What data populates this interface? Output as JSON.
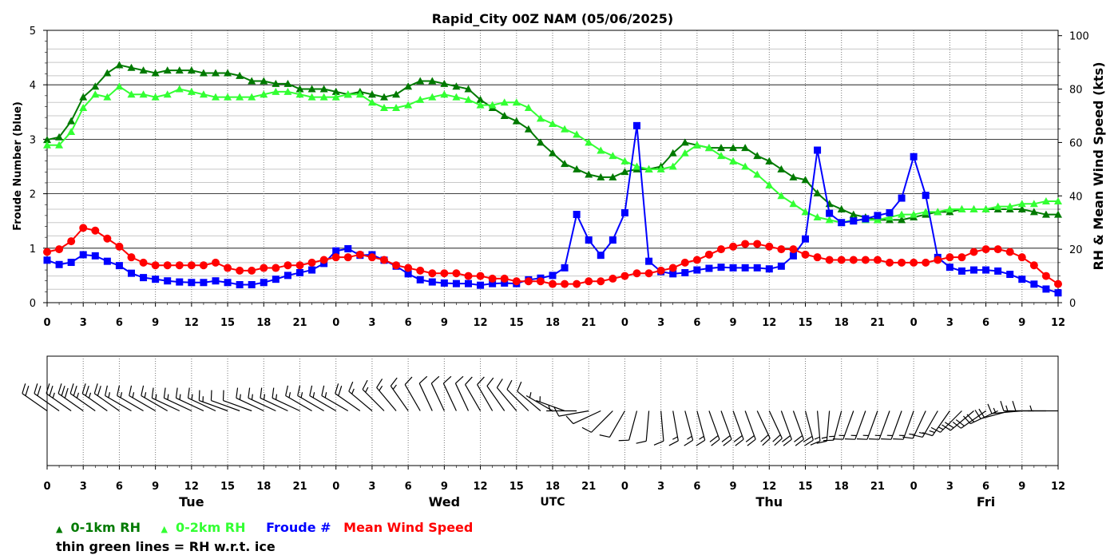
{
  "chart_data": [
    {
      "type": "line",
      "title": "Rapid_City 00Z NAM (05/06/2025)",
      "ylabel": "Froude Number (blue)",
      "y2label": "RH & Mean Wind Speed (kts)",
      "ylim": [
        0,
        5
      ],
      "y2lim": [
        0,
        102
      ],
      "yticks": [
        0,
        1,
        2,
        3,
        4,
        5
      ],
      "y2ticks": [
        0,
        20,
        40,
        60,
        80,
        100
      ],
      "x": [
        0,
        1,
        2,
        3,
        4,
        5,
        6,
        7,
        8,
        9,
        10,
        11,
        12,
        13,
        14,
        15,
        16,
        17,
        18,
        19,
        20,
        21,
        22,
        23,
        24,
        25,
        26,
        27,
        28,
        29,
        30,
        31,
        32,
        33,
        34,
        35,
        36,
        37,
        38,
        39,
        40,
        41,
        42,
        43,
        44,
        45,
        46,
        47,
        48,
        49,
        50,
        51,
        52,
        53,
        54,
        55,
        56,
        57,
        58,
        59,
        60,
        61,
        62,
        63,
        64,
        65,
        66,
        67,
        68,
        69,
        70,
        71,
        72,
        73,
        74,
        75,
        76,
        77,
        78,
        79,
        80,
        81,
        82,
        83,
        84
      ],
      "xticks": [
        0,
        3,
        6,
        9,
        12,
        15,
        18,
        21,
        24,
        27,
        30,
        33,
        36,
        39,
        42,
        45,
        48,
        51,
        54,
        57,
        60,
        63,
        66,
        69,
        72,
        75,
        78,
        81,
        84
      ],
      "xticklabels": [
        "0",
        "3",
        "6",
        "9",
        "12",
        "15",
        "18",
        "21",
        "0",
        "3",
        "6",
        "9",
        "12",
        "15",
        "18",
        "21",
        "0",
        "3",
        "6",
        "9",
        "12",
        "15",
        "18",
        "21",
        "0",
        "3",
        "6",
        "9",
        "12"
      ],
      "grid": true,
      "series": [
        {
          "name": "0-1km RH",
          "axis": "right",
          "color": "#007a00",
          "marker": "triangle",
          "values": [
            61,
            62,
            68,
            77,
            81,
            86,
            89,
            88,
            87,
            86,
            87,
            87,
            87,
            86,
            86,
            86,
            85,
            83,
            83,
            82,
            82,
            80,
            80,
            80,
            79,
            78,
            79,
            78,
            77,
            78,
            81,
            83,
            83,
            82,
            81,
            80,
            76,
            73,
            70,
            68,
            65,
            60,
            56,
            52,
            50,
            48,
            47,
            47,
            49,
            50,
            50,
            51,
            56,
            60,
            59,
            58,
            58,
            58,
            58,
            55,
            53,
            50,
            47,
            46,
            41,
            37,
            35,
            33,
            32,
            31,
            31,
            31,
            32,
            33,
            34,
            34,
            35,
            35,
            35,
            35,
            35,
            35,
            34,
            33,
            33
          ]
        },
        {
          "name": "0-2km RH",
          "axis": "right",
          "color": "#33ff33",
          "marker": "triangle",
          "values": [
            59,
            59,
            64,
            73,
            78,
            77,
            81,
            78,
            78,
            77,
            78,
            80,
            79,
            78,
            77,
            77,
            77,
            77,
            78,
            79,
            79,
            78,
            77,
            77,
            77,
            78,
            78,
            75,
            73,
            73,
            74,
            76,
            77,
            78,
            77,
            76,
            74,
            74,
            75,
            75,
            73,
            69,
            67,
            65,
            63,
            60,
            57,
            55,
            53,
            51,
            50,
            50,
            51,
            56,
            59,
            58,
            55,
            53,
            51,
            48,
            44,
            40,
            37,
            34,
            32,
            31,
            30,
            31,
            31,
            31,
            32,
            33,
            33,
            34,
            34,
            35,
            35,
            35,
            35,
            36,
            36,
            37,
            37,
            38,
            38
          ]
        },
        {
          "name": "Froude #",
          "axis": "left",
          "color": "#0000ff",
          "marker": "square",
          "values": [
            0.78,
            0.7,
            0.74,
            0.88,
            0.86,
            0.76,
            0.68,
            0.54,
            0.46,
            0.43,
            0.4,
            0.38,
            0.37,
            0.37,
            0.4,
            0.37,
            0.33,
            0.33,
            0.37,
            0.43,
            0.5,
            0.55,
            0.6,
            0.72,
            0.95,
            0.99,
            0.87,
            0.88,
            0.78,
            0.67,
            0.53,
            0.42,
            0.38,
            0.36,
            0.35,
            0.35,
            0.32,
            0.35,
            0.36,
            0.35,
            0.42,
            0.45,
            0.5,
            0.64,
            1.62,
            1.15,
            0.87,
            1.15,
            1.65,
            3.25,
            0.76,
            0.57,
            0.53,
            0.55,
            0.6,
            0.63,
            0.65,
            0.64,
            0.64,
            0.64,
            0.62,
            0.67,
            0.86,
            1.17,
            2.8,
            1.64,
            1.47,
            1.5,
            1.54,
            1.6,
            1.65,
            1.92,
            2.68,
            1.97,
            0.83,
            0.65,
            0.58,
            0.6,
            0.6,
            0.58,
            0.52,
            0.43,
            0.34,
            0.25,
            0.18
          ]
        },
        {
          "name": "Mean Wind Speed",
          "axis": "right",
          "color": "#ff0000",
          "marker": "circle",
          "values": [
            19,
            20,
            23,
            28,
            27,
            24,
            21,
            17,
            15,
            14,
            14,
            14,
            14,
            14,
            15,
            13,
            12,
            12,
            13,
            13,
            14,
            14,
            15,
            16,
            17,
            17,
            18,
            17,
            16,
            14,
            13,
            12,
            11,
            11,
            11,
            10,
            10,
            9,
            9,
            8,
            8,
            8,
            7,
            7,
            7,
            8,
            8,
            9,
            10,
            11,
            11,
            12,
            13,
            15,
            16,
            18,
            20,
            21,
            22,
            22,
            21,
            20,
            20,
            18,
            17,
            16,
            16,
            16,
            16,
            16,
            15,
            15,
            15,
            15,
            16,
            17,
            17,
            19,
            20,
            20,
            19,
            17,
            14,
            10,
            7
          ]
        }
      ]
    },
    {
      "type": "wind_barbs",
      "xticklabels": [
        "0",
        "3",
        "6",
        "9",
        "12",
        "15",
        "18",
        "21",
        "0",
        "3",
        "6",
        "9",
        "12",
        "15",
        "18",
        "21",
        "0",
        "3",
        "6",
        "9",
        "12",
        "15",
        "18",
        "21",
        "0",
        "3",
        "6",
        "9",
        "12"
      ],
      "day_labels": [
        "Tue",
        "Wed",
        "Thu",
        "Fri"
      ],
      "timezone_label": "UTC",
      "barb_speed_kts": [
        19,
        20,
        23,
        28,
        27,
        24,
        21,
        17,
        15,
        14,
        14,
        14,
        14,
        14,
        15,
        13,
        12,
        12,
        13,
        13,
        14,
        14,
        15,
        16,
        17,
        17,
        18,
        17,
        16,
        14,
        13,
        12,
        11,
        11,
        11,
        10,
        10,
        9,
        9,
        8,
        8,
        8,
        7,
        7,
        7,
        8,
        8,
        9,
        10,
        11,
        11,
        12,
        13,
        15,
        16,
        18,
        20,
        21,
        22,
        22,
        21,
        20,
        20,
        18,
        17,
        16,
        16,
        16,
        16,
        16,
        15,
        15,
        15,
        15,
        16,
        17,
        17,
        19,
        20,
        20,
        19,
        17,
        14,
        10,
        7
      ],
      "barb_direction_deg": [
        305,
        305,
        305,
        305,
        305,
        305,
        305,
        300,
        300,
        300,
        300,
        295,
        295,
        295,
        295,
        290,
        290,
        290,
        295,
        295,
        295,
        295,
        300,
        300,
        300,
        300,
        305,
        310,
        315,
        320,
        325,
        330,
        335,
        335,
        335,
        335,
        330,
        330,
        325,
        320,
        315,
        310,
        300,
        290,
        270,
        260,
        245,
        225,
        210,
        195,
        185,
        175,
        170,
        165,
        165,
        160,
        160,
        160,
        160,
        155,
        155,
        160,
        160,
        165,
        175,
        185,
        195,
        200,
        200,
        200,
        200,
        200,
        200,
        205,
        210,
        215,
        225,
        230,
        235,
        245,
        255,
        265,
        270,
        270,
        270
      ]
    }
  ],
  "legend": {
    "items": [
      {
        "symbol": "▲",
        "label": "0-1km RH",
        "color": "#007a00"
      },
      {
        "symbol": "▲",
        "label": "0-2km RH",
        "color": "#33ff33"
      },
      {
        "symbol": "",
        "label": "Froude #",
        "color": "#0000ff"
      },
      {
        "symbol": "",
        "label": "Mean Wind Speed",
        "color": "#ff0000"
      }
    ],
    "note": "thin green lines = RH w.r.t. ice"
  }
}
